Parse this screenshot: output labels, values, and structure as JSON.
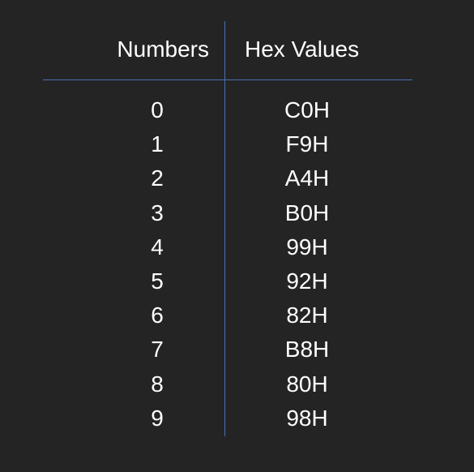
{
  "headers": {
    "numbers": "Numbers",
    "hex": "Hex Values"
  },
  "rows": [
    {
      "number": "0",
      "hex": "C0H"
    },
    {
      "number": "1",
      "hex": "F9H"
    },
    {
      "number": "2",
      "hex": "A4H"
    },
    {
      "number": "3",
      "hex": "B0H"
    },
    {
      "number": "4",
      "hex": "99H"
    },
    {
      "number": "5",
      "hex": "92H"
    },
    {
      "number": "6",
      "hex": "82H"
    },
    {
      "number": "7",
      "hex": "B8H"
    },
    {
      "number": "8",
      "hex": "80H"
    },
    {
      "number": "9",
      "hex": "98H"
    }
  ],
  "colors": {
    "background": "#242424",
    "text": "#ffffff",
    "rule": "#4a6fb3"
  }
}
